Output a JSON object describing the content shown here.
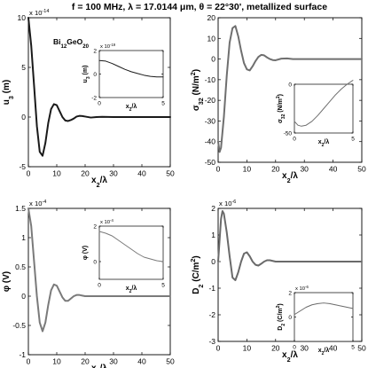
{
  "figure": {
    "title": "f = 100 MHz,    λ = 17.0144 μm,    θ = 22°30',    metallized surface"
  },
  "chart_data": [
    {
      "id": "u3",
      "type": "line",
      "ylabel_main": "u",
      "ylabel_sub": "3",
      "ylabel_tail": " (m)",
      "xlabel_main": "x",
      "xlabel_sub": "2",
      "xlabel_tail": "/λ",
      "exponent_label": "x 10",
      "exponent_power": "-14",
      "annotation": {
        "parts": [
          [
            "Bi",
            ""
          ],
          [
            "12",
            "sub"
          ],
          [
            "GeO",
            ""
          ],
          [
            "20",
            "sub"
          ]
        ]
      },
      "xlim": [
        0,
        50
      ],
      "ylim": [
        -5,
        10
      ],
      "xticks": [
        0,
        10,
        20,
        30,
        40,
        50
      ],
      "yticks": [
        10,
        5,
        0,
        -5
      ],
      "xticklabels": [
        "0",
        "10",
        "20",
        "30",
        "40",
        "50"
      ],
      "yticklabels": [
        "10",
        "5",
        "0",
        "-5"
      ],
      "series": [
        {
          "x": [
            0,
            1,
            2,
            3,
            4,
            5,
            6,
            7,
            8,
            9,
            10,
            11,
            12,
            13,
            14,
            15,
            16,
            17,
            18,
            19,
            20,
            22,
            24,
            26,
            30,
            35,
            40,
            45,
            50
          ],
          "y": [
            10.0,
            7.2,
            3.2,
            -0.9,
            -3.5,
            -3.9,
            -2.6,
            -0.6,
            0.8,
            1.3,
            1.2,
            0.6,
            0.0,
            -0.35,
            -0.4,
            -0.3,
            -0.15,
            0.05,
            0.12,
            0.1,
            0.05,
            -0.05,
            0.0,
            0.02,
            0.0,
            0.0,
            0.0,
            0.0,
            0.0
          ],
          "color": "#1a1a1a"
        }
      ],
      "inset": {
        "ylabel_main": "u",
        "ylabel_sub": "3",
        "ylabel_tail": " (m)",
        "xlabel_main": "x",
        "xlabel_sub": "2",
        "xlabel_tail": "/λ",
        "exponent_label": "x 10",
        "exponent_power": "-19",
        "xlim": [
          0,
          5
        ],
        "ylim": [
          -2,
          2
        ],
        "xticks": [
          0,
          5
        ],
        "yticks": [
          2,
          0,
          -2
        ],
        "xticklabels": [
          "0",
          "5"
        ],
        "yticklabels": [
          "2",
          "0",
          "-2"
        ],
        "series": [
          {
            "x": [
              0,
              0.5,
              1,
              1.5,
              2,
              2.5,
              3,
              3.5,
              4,
              4.5,
              5
            ],
            "y": [
              1.15,
              1.1,
              0.9,
              0.65,
              0.4,
              0.2,
              0.05,
              -0.1,
              -0.2,
              -0.25,
              -0.25
            ],
            "color": "#1a1a1a"
          }
        ]
      }
    },
    {
      "id": "sigma32",
      "type": "line",
      "ylabel_main": "σ",
      "ylabel_sub": "32",
      "ylabel_tail": " (N/m",
      "ylabel_sup": "2",
      "ylabel_end": ")",
      "xlabel_main": "x",
      "xlabel_sub": "2",
      "xlabel_tail": "/λ",
      "xlim": [
        0,
        50
      ],
      "ylim": [
        -50,
        20
      ],
      "xticks": [
        0,
        10,
        20,
        30,
        40,
        50
      ],
      "yticks": [
        20,
        10,
        0,
        -10,
        -20,
        -30,
        -40,
        -50
      ],
      "xticklabels": [
        "0",
        "10",
        "20",
        "30",
        "40",
        "50"
      ],
      "yticklabels": [
        "20",
        "10",
        "0",
        "-10",
        "-20",
        "-30",
        "-40",
        "-50"
      ],
      "series": [
        {
          "x": [
            0,
            0.5,
            1,
            2,
            3,
            4,
            5,
            6,
            7,
            8,
            9,
            10,
            11,
            12,
            13,
            14,
            15,
            16,
            17,
            18,
            19,
            20,
            22,
            24,
            26,
            30,
            35,
            40,
            45,
            50
          ],
          "y": [
            -40,
            -45,
            -43,
            -28,
            -8,
            8,
            15,
            16,
            11,
            4,
            -2,
            -5,
            -5.5,
            -3.5,
            -1,
            1,
            2,
            1.8,
            0.8,
            0,
            -0.5,
            -0.6,
            0.2,
            0.3,
            0,
            0,
            0,
            0,
            0,
            0
          ],
          "color": "#6f6f6f"
        }
      ],
      "inset": {
        "ylabel_main": "σ",
        "ylabel_sub": "32",
        "ylabel_tail": " (N/m",
        "ylabel_sup": "2",
        "ylabel_end": ")",
        "xlabel_main": "x",
        "xlabel_sub": "2",
        "xlabel_tail": "/λ",
        "xlim": [
          0,
          5
        ],
        "ylim": [
          -50,
          0
        ],
        "xticks": [
          0,
          5
        ],
        "yticks": [
          0,
          -50
        ],
        "xticklabels": [
          "0",
          "5"
        ],
        "yticklabels": [
          "0",
          "-50"
        ],
        "series": [
          {
            "x": [
              0,
              0.3,
              0.6,
              1,
              1.5,
              2,
              2.5,
              3,
              3.5,
              4,
              4.5,
              5
            ],
            "y": [
              -38,
              -42,
              -43,
              -42,
              -38,
              -32,
              -25,
              -18,
              -11,
              -5,
              0,
              4
            ],
            "color": "#6f6f6f"
          }
        ]
      }
    },
    {
      "id": "phi",
      "type": "line",
      "ylabel_main": "φ",
      "ylabel_sub": "",
      "ylabel_tail": " (V)",
      "xlabel_main": "x",
      "xlabel_sub": "2",
      "xlabel_tail": "/λ",
      "exponent_label": "x 10",
      "exponent_power": "-4",
      "xlim": [
        0,
        50
      ],
      "ylim": [
        -1,
        1.5
      ],
      "xticks": [
        0,
        10,
        20,
        30,
        40,
        50
      ],
      "yticks": [
        1.5,
        1,
        0.5,
        0,
        -0.5,
        -1
      ],
      "xticklabels": [
        "0",
        "10",
        "20",
        "30",
        "40",
        "50"
      ],
      "yticklabels": [
        "1.5",
        "1",
        "0.5",
        "0",
        "-0.5",
        "-1"
      ],
      "series": [
        {
          "x": [
            0,
            1,
            2,
            3,
            4,
            5,
            6,
            7,
            8,
            9,
            10,
            11,
            12,
            13,
            14,
            15,
            16,
            17,
            18,
            19,
            20,
            22,
            24,
            26,
            30,
            35,
            40,
            45,
            50
          ],
          "y": [
            1.5,
            1.2,
            0.6,
            0.0,
            -0.45,
            -0.6,
            -0.45,
            -0.15,
            0.1,
            0.2,
            0.18,
            0.08,
            -0.02,
            -0.08,
            -0.08,
            -0.04,
            0.0,
            0.02,
            0.02,
            0.01,
            0.0,
            0.0,
            0.0,
            0.0,
            0.0,
            0.0,
            0.0,
            0.0,
            0.0
          ],
          "color": "#7a7a7a"
        }
      ],
      "inset": {
        "ylabel_main": "φ",
        "ylabel_sub": "",
        "ylabel_tail": " (V)",
        "xlabel_main": "x",
        "xlabel_sub": "2",
        "xlabel_tail": "/λ",
        "exponent_label": "x 10",
        "exponent_power": "-4",
        "xlim": [
          0,
          5
        ],
        "ylim": [
          -1,
          2
        ],
        "xticks": [
          0,
          5
        ],
        "yticks": [
          2,
          0
        ],
        "xticklabels": [
          "0",
          "5"
        ],
        "yticklabels": [
          "2",
          "0"
        ],
        "series": [
          {
            "x": [
              0,
              0.5,
              1,
              1.5,
              2,
              2.5,
              3,
              3.5,
              4,
              4.5,
              5
            ],
            "y": [
              1.7,
              1.6,
              1.45,
              1.2,
              0.95,
              0.7,
              0.45,
              0.25,
              0.15,
              0.05,
              0.0
            ],
            "color": "#7a7a7a"
          }
        ]
      }
    },
    {
      "id": "D2",
      "type": "line",
      "ylabel_main": "D",
      "ylabel_sub": "2",
      "ylabel_tail": " (C/m",
      "ylabel_sup": "2",
      "ylabel_end": ")",
      "xlabel_main": "x",
      "xlabel_sub": "2",
      "xlabel_tail": "/λ",
      "exponent_label": "x 10",
      "exponent_power": "-6",
      "xlim": [
        0,
        50
      ],
      "ylim": [
        -3,
        2
      ],
      "xticks": [
        0,
        10,
        20,
        30,
        40,
        50
      ],
      "yticks": [
        2,
        1,
        0,
        -1,
        -2,
        -3
      ],
      "xticklabels": [
        "0",
        "10",
        "20",
        "30",
        "40",
        "50"
      ],
      "yticklabels": [
        "2",
        "1",
        "0",
        "-1",
        "-2",
        "-3"
      ],
      "series": [
        {
          "x": [
            0,
            0.5,
            1,
            1.5,
            2,
            3,
            4,
            5,
            6,
            7,
            8,
            9,
            10,
            11,
            12,
            13,
            14,
            15,
            16,
            17,
            18,
            20,
            22,
            24,
            26,
            30,
            35,
            40,
            45,
            50
          ],
          "y": [
            0.0,
            0.8,
            1.6,
            1.9,
            1.8,
            1.1,
            0.2,
            -0.6,
            -0.7,
            -0.4,
            0.0,
            0.3,
            0.35,
            0.2,
            0.0,
            -0.12,
            -0.15,
            -0.08,
            0.0,
            0.05,
            0.05,
            0.0,
            0.0,
            0.0,
            0.0,
            0.0,
            0.0,
            0.0,
            0.0,
            0.0
          ],
          "color": "#6a6a6a"
        }
      ],
      "inset": {
        "ylabel_main": "D",
        "ylabel_sub": "2",
        "ylabel_tail": " (C/m",
        "ylabel_sup": "2",
        "ylabel_end": ")",
        "xlabel_main": "x",
        "xlabel_sub": "2",
        "xlabel_tail": "/λ",
        "exponent_label": "x 10",
        "exponent_power": "-6",
        "xlim": [
          0,
          5
        ],
        "ylim": [
          -2,
          2
        ],
        "xticks": [
          0,
          5
        ],
        "yticks": [
          2,
          0
        ],
        "xticklabels": [
          "0",
          "5"
        ],
        "yticklabels": [
          "2",
          "0"
        ],
        "series": [
          {
            "x": [
              0,
              0.5,
              1,
              1.5,
              2,
              2.5,
              3,
              3.5,
              4,
              4.5,
              5
            ],
            "y": [
              0.2,
              0.5,
              0.8,
              1.0,
              1.1,
              1.15,
              1.1,
              1.0,
              0.9,
              0.8,
              0.7
            ],
            "color": "#6a6a6a"
          }
        ]
      }
    }
  ]
}
